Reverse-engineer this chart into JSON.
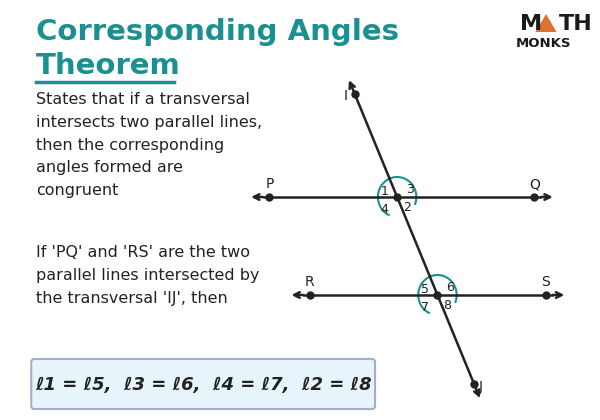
{
  "bg_color": "#ffffff",
  "title_line1": "Corresponding Angles",
  "title_line2": "Theorem",
  "title_color": "#1a9090",
  "title_underline_color": "#1a9090",
  "text_color": "#222222",
  "body_text1": "States that if a transversal\nintersects two parallel lines,\nthen the corresponding\nangles formed are\ncongruent",
  "body_text2": "If 'PQ' and 'RS' are the two\nparallel lines intersected by\nthe transversal 'IJ', then",
  "formula_text": "ℓ1 = ℓ5,  ℓ3 = ℓ6,  ℓ4 = ℓ7,  ℓ2 = ℓ8",
  "formula_bg": "#e8f4fb",
  "formula_border": "#aaaacc",
  "mathmonks_color": "#1a1a1a",
  "triangle_color": "#e07030",
  "diagram_line_color": "#222222",
  "arc_color": "#1a9090",
  "ix1": 390,
  "iy1": 197,
  "ix2": 432,
  "iy2": 295
}
